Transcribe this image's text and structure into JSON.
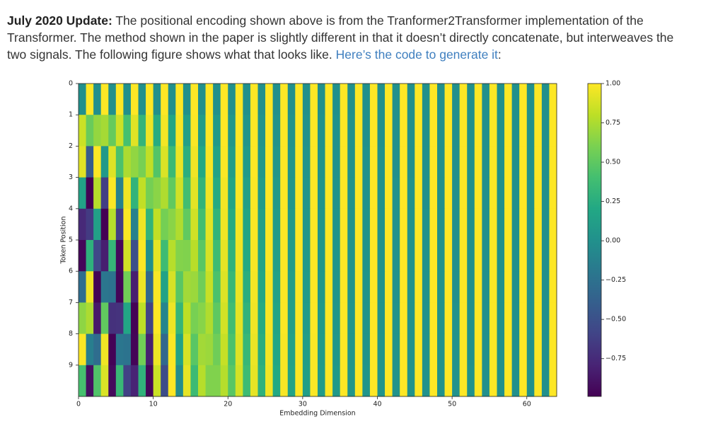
{
  "text": {
    "lead": "July 2020 Update:",
    "body": " The positional encoding shown above is from the Tranformer2Transformer implementation of the Transformer. The method shown in the paper is slightly different in that it doesn’t directly concatenate, but interweaves the two signals. The following figure shows what that looks like. ",
    "link": "Here’s the code to generate it",
    "tail": ":"
  },
  "chart_data": {
    "type": "heatmap",
    "xlabel": "Embedding Dimension",
    "ylabel": "Token Position",
    "colormap": "viridis",
    "xlim": [
      0,
      64
    ],
    "xticks": [
      0,
      10,
      20,
      30,
      40,
      50,
      60
    ],
    "ylim": [
      10,
      0
    ],
    "yticks": [
      0,
      1,
      2,
      3,
      4,
      5,
      6,
      7,
      8,
      9
    ],
    "zlim": [
      -0.99,
      1
    ],
    "zticks": [
      {
        "value": 1,
        "label": "1.00"
      },
      0.75,
      {
        "value": 0.5,
        "label": "0.50"
      },
      0.25,
      {
        "value": 0,
        "label": "0.00"
      },
      {
        "value": -0.25,
        "label": "−0.25"
      },
      {
        "value": -0.5,
        "label": "−0.50"
      },
      {
        "value": -0.75,
        "label": "−0.75"
      }
    ],
    "z": [
      [
        0,
        1,
        0,
        1,
        0,
        1,
        0,
        1,
        0,
        1,
        0,
        1,
        0,
        1,
        0,
        1,
        0,
        1,
        0,
        1,
        0,
        1,
        0,
        1,
        0,
        1,
        0,
        1,
        0,
        1,
        0,
        1,
        0,
        1,
        0,
        1,
        0,
        1,
        0,
        1,
        0,
        1,
        0,
        1,
        0,
        1,
        0,
        1,
        0,
        1,
        0,
        1,
        0,
        1,
        0,
        1,
        0,
        1,
        0,
        1,
        0,
        1,
        0,
        1
      ],
      [
        0.84,
        0.54,
        0.68,
        0.73,
        0.53,
        0.85,
        0.41,
        0.91,
        0.31,
        0.95,
        0.24,
        0.97,
        0.18,
        0.98,
        0.13,
        0.99,
        0.1,
        1,
        0.07,
        1,
        0.06,
        1,
        0.04,
        1,
        0.03,
        1,
        0.02,
        1,
        0.02,
        1,
        0.01,
        1,
        0.01,
        1,
        0.01,
        1,
        0.01,
        1,
        0,
        1,
        0,
        1,
        0,
        1,
        0,
        1,
        0,
        1,
        0,
        1,
        0,
        1,
        0,
        1,
        0,
        1,
        0,
        1,
        0,
        1,
        0,
        1,
        0,
        1
      ],
      [
        0.91,
        -0.42,
        1,
        0.07,
        0.9,
        0.43,
        0.75,
        0.67,
        0.59,
        0.81,
        0.46,
        0.89,
        0.35,
        0.94,
        0.26,
        0.96,
        0.2,
        0.98,
        0.15,
        0.99,
        0.11,
        0.99,
        0.08,
        1,
        0.06,
        1,
        0.05,
        1,
        0.04,
        1,
        0.03,
        1,
        0.02,
        1,
        0.01,
        1,
        0.01,
        1,
        0.01,
        1,
        0.01,
        1,
        0,
        1,
        0,
        1,
        0,
        1,
        0,
        1,
        0,
        1,
        0,
        1,
        0,
        1,
        0,
        1,
        0,
        1,
        0,
        1,
        0,
        1
      ],
      [
        0.14,
        -0.99,
        0.78,
        -0.63,
        0.99,
        -0.12,
        0.95,
        0.3,
        0.81,
        0.58,
        0.65,
        0.76,
        0.51,
        0.86,
        0.39,
        0.92,
        0.3,
        0.96,
        0.22,
        0.97,
        0.17,
        0.99,
        0.13,
        0.99,
        0.09,
        1,
        0.07,
        1,
        0.05,
        1,
        0.04,
        1,
        0.03,
        1,
        0.02,
        1,
        0.02,
        1,
        0.01,
        1,
        0.01,
        1,
        0.01,
        1,
        0.01,
        1,
        0,
        1,
        0,
        1,
        0,
        1,
        0,
        1,
        0,
        1,
        0,
        1,
        0,
        1,
        0,
        1,
        0,
        1
      ],
      [
        -0.76,
        -0.65,
        0.14,
        -0.99,
        0.78,
        -0.63,
        0.99,
        -0.12,
        0.95,
        0.3,
        0.81,
        0.58,
        0.65,
        0.76,
        0.51,
        0.86,
        0.39,
        0.92,
        0.3,
        0.96,
        0.22,
        0.97,
        0.17,
        0.99,
        0.13,
        0.99,
        0.09,
        1,
        0.07,
        1,
        0.05,
        1,
        0.04,
        1,
        0.03,
        1,
        0.02,
        1,
        0.02,
        1,
        0.01,
        1,
        0.01,
        1,
        0.01,
        1,
        0.01,
        1,
        0,
        1,
        0,
        1,
        0,
        1,
        0,
        1,
        0,
        1,
        0,
        1,
        0,
        1,
        0,
        1
      ],
      [
        -0.96,
        0.28,
        -0.57,
        -0.82,
        0.32,
        -0.95,
        0.86,
        -0.51,
        1,
        -0.01,
        0.93,
        0.37,
        0.78,
        0.63,
        0.62,
        0.79,
        0.48,
        0.88,
        0.37,
        0.93,
        0.28,
        0.96,
        0.21,
        0.98,
        0.16,
        0.99,
        0.12,
        0.99,
        0.09,
        1,
        0.07,
        1,
        0.05,
        1,
        0.04,
        1,
        0.03,
        1,
        0.02,
        1,
        0.02,
        1,
        0.01,
        1,
        0.01,
        1,
        0.01,
        1,
        0.01,
        1,
        0,
        1,
        0,
        1,
        0,
        1,
        0,
        1,
        0,
        1,
        0,
        1,
        0,
        1
      ],
      [
        -0.28,
        0.96,
        -0.98,
        -0.21,
        -0.23,
        -0.97,
        0.57,
        -0.82,
        0.95,
        -0.32,
        0.99,
        0.15,
        0.88,
        0.48,
        0.72,
        0.7,
        0.56,
        0.83,
        0.43,
        0.9,
        0.33,
        0.94,
        0.25,
        0.97,
        0.19,
        0.98,
        0.14,
        0.99,
        0.11,
        0.99,
        0.08,
        1,
        0.06,
        1,
        0.04,
        1,
        0.03,
        1,
        0.03,
        1,
        0.02,
        1,
        0.01,
        1,
        0.01,
        1,
        0.01,
        1,
        0.01,
        1,
        0,
        1,
        0,
        1,
        0,
        1,
        0,
        1,
        0,
        1,
        0,
        1,
        0,
        1
      ],
      [
        0.66,
        0.75,
        -0.86,
        0.51,
        -0.71,
        -0.7,
        0.19,
        -0.98,
        0.8,
        -0.6,
        1,
        -0.09,
        0.95,
        0.32,
        0.8,
        0.59,
        0.64,
        0.76,
        0.5,
        0.87,
        0.38,
        0.92,
        0.29,
        0.96,
        0.22,
        0.98,
        0.17,
        0.99,
        0.12,
        0.99,
        0.09,
        1,
        0.07,
        1,
        0.05,
        1,
        0.04,
        1,
        0.03,
        1,
        0.02,
        1,
        0.02,
        1,
        0.01,
        1,
        0.01,
        1,
        0.01,
        1,
        0.01,
        1,
        0,
        1,
        0,
        1,
        0,
        1,
        0,
        1,
        0,
        1,
        0,
        1
      ],
      [
        0.99,
        -0.15,
        -0.28,
        0.96,
        -0.98,
        -0.21,
        -0.23,
        -0.97,
        0.57,
        -0.82,
        0.95,
        -0.32,
        0.99,
        0.15,
        0.88,
        0.48,
        0.72,
        0.7,
        0.56,
        0.83,
        0.43,
        0.9,
        0.33,
        0.94,
        0.25,
        0.97,
        0.19,
        0.98,
        0.14,
        0.99,
        0.11,
        0.99,
        0.08,
        1,
        0.06,
        1,
        0.04,
        1,
        0.03,
        1,
        0.03,
        1,
        0.02,
        1,
        0.01,
        1,
        0.01,
        1,
        0.01,
        1,
        0.01,
        1,
        0,
        1,
        0,
        1,
        0,
        1,
        0,
        1,
        0,
        1,
        0,
        1
      ],
      [
        0.41,
        -0.91,
        0.45,
        0.89,
        -0.94,
        0.34,
        -0.61,
        -0.79,
        0.29,
        -0.96,
        0.84,
        -0.53,
        1,
        -0.03,
        0.93,
        0.36,
        0.78,
        0.62,
        0.62,
        0.78,
        0.48,
        0.87,
        0.37,
        0.93,
        0.28,
        0.96,
        0.21,
        0.98,
        0.16,
        0.99,
        0.12,
        0.99,
        0.09,
        1,
        0.07,
        1,
        0.05,
        1,
        0.04,
        1,
        0.03,
        1,
        0.02,
        1,
        0.02,
        1,
        0.01,
        1,
        0.01,
        1,
        0.01,
        1,
        0.01,
        1,
        0,
        1,
        0,
        1,
        0,
        1,
        0,
        1,
        0,
        1
      ]
    ]
  }
}
